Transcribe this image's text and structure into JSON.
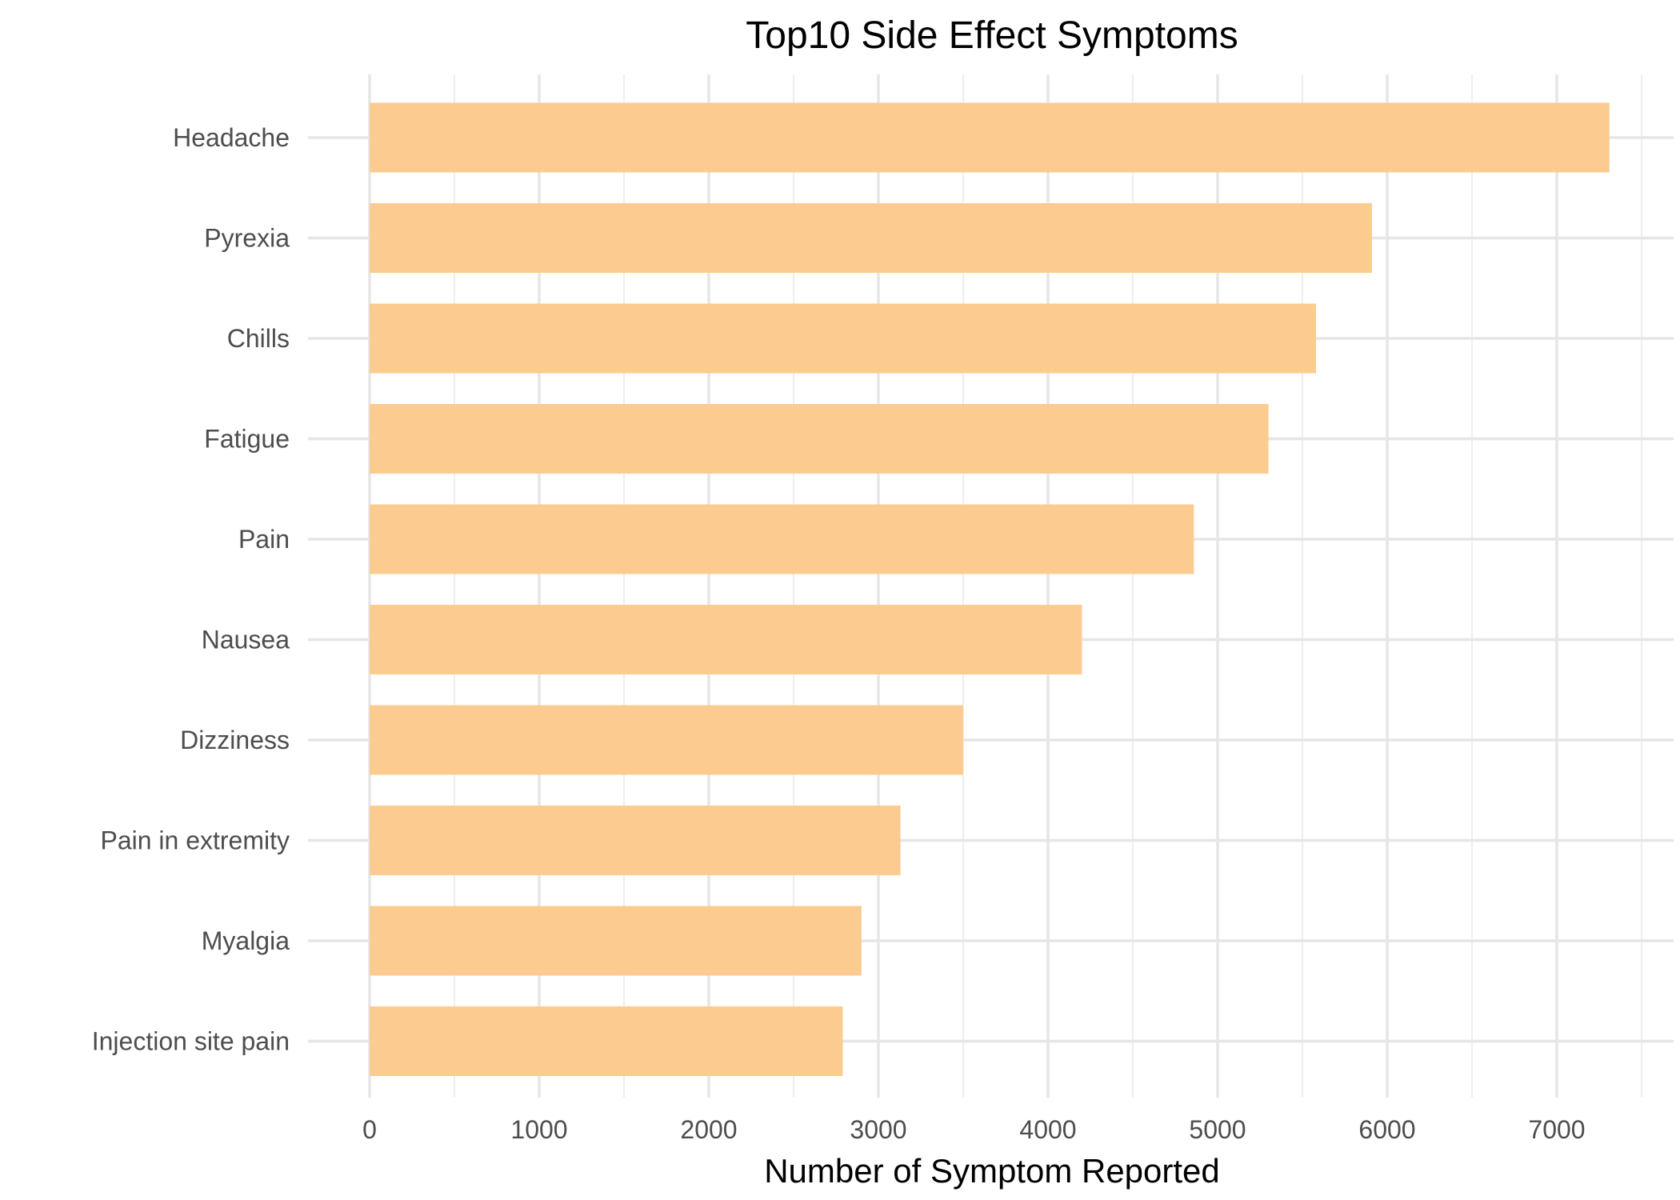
{
  "chart_data": {
    "type": "bar",
    "orientation": "horizontal",
    "title": "Top10 Side Effect Symptoms",
    "xlabel": "Number of Symptom Reported",
    "ylabel": "",
    "categories": [
      "Headache",
      "Pyrexia",
      "Chills",
      "Fatigue",
      "Pain",
      "Nausea",
      "Dizziness",
      "Pain in extremity",
      "Myalgia",
      "Injection site pain"
    ],
    "values": [
      7310,
      5910,
      5580,
      5300,
      4860,
      4200,
      3500,
      3130,
      2900,
      2790
    ],
    "xlim": [
      0,
      7500
    ],
    "xticks": [
      "0",
      "1000",
      "2000",
      "3000",
      "4000",
      "5000",
      "6000",
      "7000"
    ],
    "bar_color": "#fbcb8f",
    "grid": true,
    "legend": "none"
  }
}
